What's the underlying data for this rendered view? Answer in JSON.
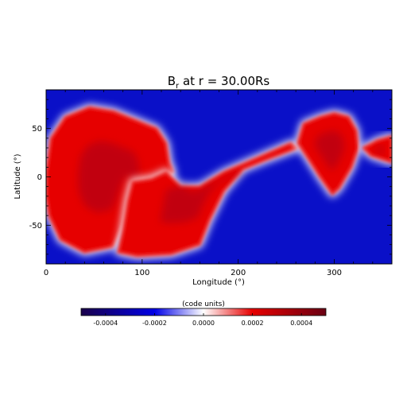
{
  "chart_data": {
    "type": "heatmap",
    "title": "B",
    "title_sub": "r",
    "title_rest": " at r = 30.00Rs",
    "xlabel": "Longitude (°)",
    "ylabel": "Latitude (°)",
    "xlim": [
      0,
      360
    ],
    "ylim": [
      -90,
      90
    ],
    "x_ticks": [
      0,
      100,
      200,
      300
    ],
    "y_ticks": [
      -50,
      0,
      50
    ],
    "colorbar": {
      "label": "(code units)",
      "range": [
        -0.0005,
        0.0005
      ],
      "ticks": [
        -0.0004,
        -0.0002,
        0.0,
        0.0002,
        0.0004
      ],
      "tick_labels": [
        "-0.0004",
        "-0.0002",
        "0.0000",
        "0.0002",
        "0.0004"
      ],
      "colors": [
        "#1a004a",
        "#0000e6",
        "#ffffff",
        "#e60000",
        "#6a0014"
      ]
    },
    "regions": [
      {
        "polarity": "positive",
        "level": 0.00045,
        "outline": [
          [
            0,
            5
          ],
          [
            5,
            40
          ],
          [
            20,
            62
          ],
          [
            45,
            72
          ],
          [
            70,
            68
          ],
          [
            95,
            58
          ],
          [
            115,
            50
          ],
          [
            125,
            35
          ],
          [
            128,
            15
          ],
          [
            132,
            5
          ],
          [
            120,
            -5
          ],
          [
            100,
            -3
          ],
          [
            90,
            -20
          ],
          [
            80,
            -50
          ],
          [
            70,
            -72
          ],
          [
            40,
            -78
          ],
          [
            15,
            -65
          ],
          [
            3,
            -40
          ],
          [
            0,
            -20
          ]
        ]
      },
      {
        "polarity": "positive",
        "level": 0.00042,
        "outline": [
          [
            85,
            -25
          ],
          [
            90,
            -5
          ],
          [
            110,
            -2
          ],
          [
            125,
            5
          ],
          [
            140,
            -10
          ],
          [
            160,
            -10
          ],
          [
            185,
            5
          ],
          [
            220,
            20
          ],
          [
            255,
            35
          ],
          [
            262,
            30
          ],
          [
            230,
            18
          ],
          [
            205,
            8
          ],
          [
            185,
            -15
          ],
          [
            170,
            -45
          ],
          [
            160,
            -70
          ],
          [
            130,
            -80
          ],
          [
            95,
            -82
          ],
          [
            75,
            -78
          ],
          [
            80,
            -55
          ]
        ]
      },
      {
        "polarity": "positive",
        "level": 0.00045,
        "outline": [
          [
            262,
            35
          ],
          [
            268,
            55
          ],
          [
            285,
            62
          ],
          [
            300,
            66
          ],
          [
            315,
            62
          ],
          [
            323,
            48
          ],
          [
            325,
            30
          ],
          [
            318,
            10
          ],
          [
            305,
            -12
          ],
          [
            298,
            -18
          ],
          [
            285,
            0
          ],
          [
            272,
            20
          ]
        ]
      },
      {
        "polarity": "positive",
        "level": 0.0003,
        "outline": [
          [
            330,
            30
          ],
          [
            345,
            38
          ],
          [
            360,
            42
          ],
          [
            360,
            15
          ],
          [
            350,
            18
          ],
          [
            338,
            22
          ]
        ]
      }
    ]
  }
}
